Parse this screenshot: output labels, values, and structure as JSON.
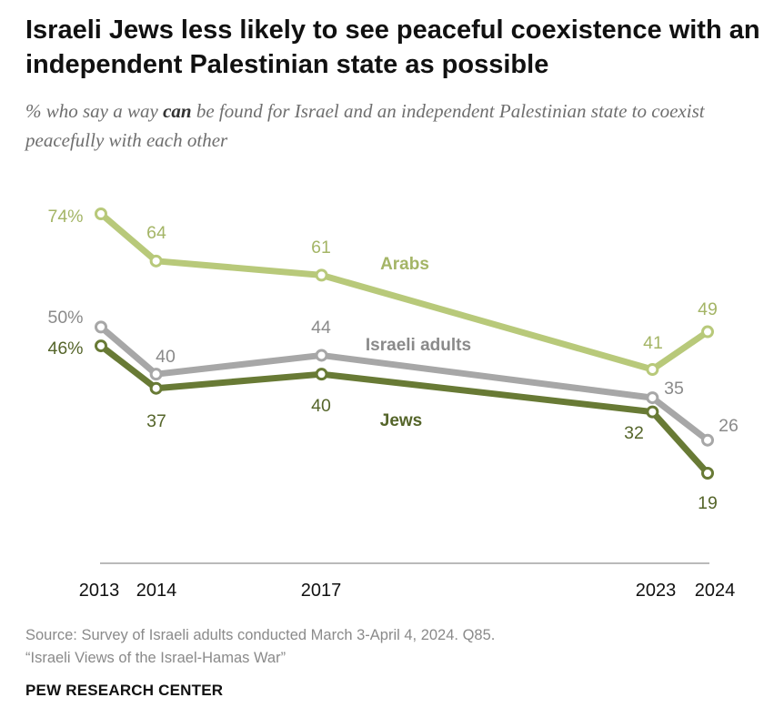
{
  "title": "Israeli Jews less likely to see peaceful coexistence with an independent Palestinian state as possible",
  "subtitle": {
    "pre": "% who say a way ",
    "emphasis": "can",
    "post": " be found for Israel and an independent Palestinian state to coexist peacefully with each other"
  },
  "chart_data": {
    "type": "line",
    "x": [
      2013,
      2014,
      2017,
      2023,
      2024
    ],
    "categories": [
      "2013",
      "2014",
      "2017",
      "2023",
      "2024"
    ],
    "ylim": [
      0,
      100
    ],
    "grid": false,
    "series": [
      {
        "name": "Arabs",
        "values": [
          74,
          64,
          61,
          41,
          49
        ],
        "labels": [
          "74%",
          "64",
          "61",
          "41",
          "49"
        ],
        "color": "#b8c97a"
      },
      {
        "name": "Israeli adults",
        "values": [
          50,
          40,
          44,
          35,
          26
        ],
        "labels": [
          "50%",
          "40",
          "44",
          "35",
          "26"
        ],
        "color": "#a7a7a7"
      },
      {
        "name": "Jews",
        "values": [
          46,
          37,
          40,
          32,
          19
        ],
        "labels": [
          "46%",
          "37",
          "40",
          "32",
          "19"
        ],
        "color": "#687a35"
      }
    ]
  },
  "label_colors": {
    "Arabs": "#a4b566",
    "Israeli adults": "#8a8a8a",
    "Jews": "#55652a"
  },
  "source": {
    "line1": "Source: Survey of Israeli adults conducted March 3-April 4, 2024. Q85.",
    "line2": "“Israeli Views of the Israel-Hamas War”"
  },
  "org": "PEW RESEARCH CENTER"
}
